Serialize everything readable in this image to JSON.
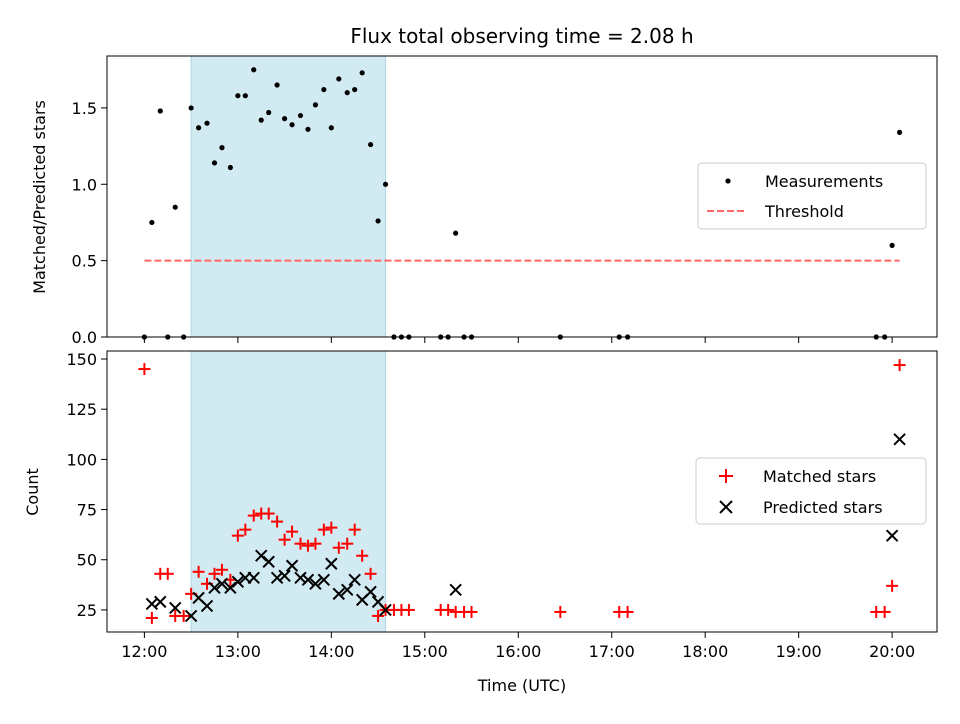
{
  "chart_data": [
    {
      "type": "scatter",
      "title": "Flux total observing time = 2.08 h",
      "xlabel": "",
      "ylabel": "Matched/Predicted stars",
      "xlim": [
        11.6,
        20.48
      ],
      "ylim": [
        0,
        1.84
      ],
      "yticks": [
        0.0,
        0.5,
        1.0,
        1.5
      ],
      "ytick_labels": [
        "0.0",
        "0.5",
        "1.0",
        "1.5"
      ],
      "xticks": [
        12,
        13,
        14,
        15,
        16,
        17,
        18,
        19,
        20
      ],
      "legend_position": "center-right",
      "shaded_span": {
        "x": [
          12.5,
          14.58
        ],
        "color": "#add8e6"
      },
      "threshold": {
        "name": "Threshold",
        "y": 0.5,
        "x": [
          12.0,
          20.08
        ],
        "color": "#ff6666"
      },
      "series": [
        {
          "name": "Measurements",
          "marker": "dot",
          "color": "#000000",
          "x": [
            12.0,
            12.08,
            12.17,
            12.25,
            12.33,
            12.42,
            12.5,
            12.58,
            12.67,
            12.75,
            12.83,
            12.92,
            13.0,
            13.08,
            13.17,
            13.25,
            13.33,
            13.42,
            13.5,
            13.58,
            13.67,
            13.75,
            13.83,
            13.92,
            14.0,
            14.08,
            14.17,
            14.25,
            14.33,
            14.42,
            14.5,
            14.58,
            14.67,
            14.75,
            14.83,
            15.17,
            15.25,
            15.33,
            15.42,
            15.5,
            16.45,
            17.08,
            17.17,
            19.83,
            19.92,
            20.0,
            20.08
          ],
          "y": [
            0.0,
            0.75,
            1.48,
            0.0,
            0.85,
            0.0,
            1.5,
            1.37,
            1.4,
            1.14,
            1.24,
            1.11,
            1.58,
            1.58,
            1.75,
            1.42,
            1.47,
            1.65,
            1.43,
            1.39,
            1.45,
            1.36,
            1.52,
            1.62,
            1.37,
            1.69,
            1.6,
            1.62,
            1.73,
            1.26,
            0.76,
            1.0,
            0.0,
            0.0,
            0.0,
            0.0,
            0.0,
            0.68,
            0.0,
            0.0,
            0.0,
            0.0,
            0.0,
            0.0,
            0.0,
            0.6,
            1.34
          ]
        }
      ]
    },
    {
      "type": "scatter",
      "title": "",
      "xlabel": "Time (UTC)",
      "ylabel": "Count",
      "xlim": [
        11.6,
        20.48
      ],
      "ylim": [
        14,
        154
      ],
      "yticks": [
        25,
        50,
        75,
        100,
        125,
        150
      ],
      "xticks": [
        12,
        13,
        14,
        15,
        16,
        17,
        18,
        19,
        20
      ],
      "xtick_labels": [
        "12:00",
        "13:00",
        "14:00",
        "15:00",
        "16:00",
        "17:00",
        "18:00",
        "19:00",
        "20:00"
      ],
      "legend_position": "center-right",
      "shaded_span": {
        "x": [
          12.5,
          14.58
        ],
        "color": "#add8e6"
      },
      "series": [
        {
          "name": "Matched stars",
          "marker": "plus",
          "color": "#ff0000",
          "x": [
            12.0,
            12.08,
            12.17,
            12.25,
            12.33,
            12.42,
            12.5,
            12.58,
            12.67,
            12.75,
            12.83,
            12.92,
            13.0,
            13.08,
            13.17,
            13.25,
            13.33,
            13.42,
            13.5,
            13.58,
            13.67,
            13.75,
            13.83,
            13.92,
            14.0,
            14.08,
            14.17,
            14.25,
            14.33,
            14.42,
            14.5,
            14.58,
            14.67,
            14.75,
            14.83,
            15.17,
            15.25,
            15.33,
            15.42,
            15.5,
            16.45,
            17.08,
            17.17,
            19.83,
            19.92,
            20.0,
            20.08
          ],
          "y": [
            145,
            21,
            43,
            43,
            22,
            22,
            33,
            44,
            38,
            43,
            45,
            40,
            62,
            65,
            72,
            73,
            73,
            69,
            60,
            64,
            58,
            57,
            58,
            65,
            66,
            56,
            58,
            65,
            52,
            43,
            22,
            25,
            25,
            25,
            25,
            25,
            25,
            24,
            24,
            24,
            24,
            24,
            24,
            24,
            24,
            37,
            147
          ]
        },
        {
          "name": "Predicted stars",
          "marker": "x",
          "color": "#000000",
          "x": [
            12.08,
            12.17,
            12.33,
            12.5,
            12.58,
            12.67,
            12.75,
            12.83,
            12.92,
            13.0,
            13.08,
            13.17,
            13.25,
            13.33,
            13.42,
            13.5,
            13.58,
            13.67,
            13.75,
            13.83,
            13.92,
            14.0,
            14.08,
            14.17,
            14.25,
            14.33,
            14.42,
            14.5,
            14.58,
            15.33,
            20.0,
            20.08
          ],
          "y": [
            28,
            29,
            26,
            22,
            31,
            27,
            36,
            38,
            36,
            39,
            41,
            41,
            52,
            49,
            41,
            42,
            47,
            41,
            40,
            38,
            40,
            48,
            33,
            35,
            40,
            30,
            34,
            29,
            25,
            35,
            62,
            110
          ]
        }
      ]
    }
  ]
}
